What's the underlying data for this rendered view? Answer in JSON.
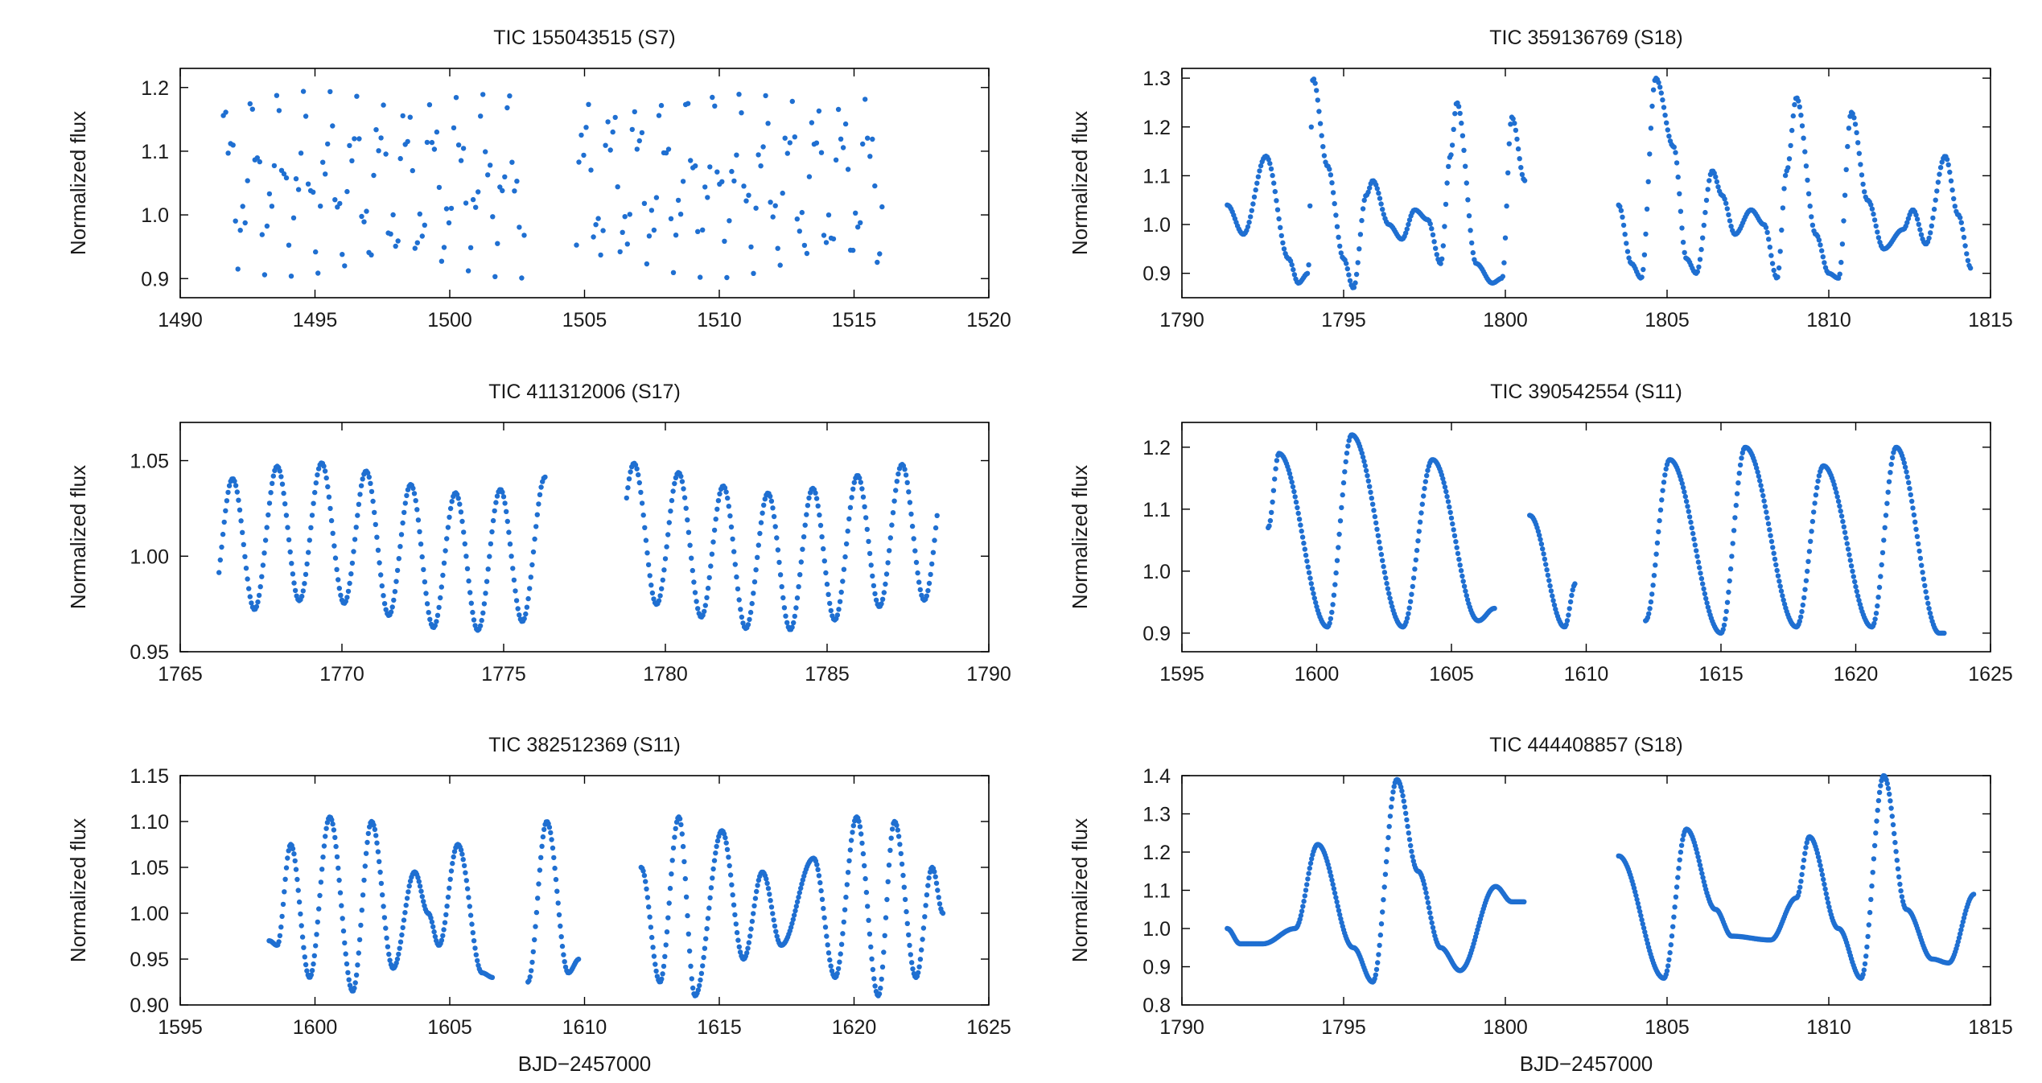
{
  "colors": {
    "points": "#1f6fd1",
    "axes": "#000000",
    "text": "#1a1a1a"
  },
  "chart_data": [
    {
      "type": "scatter",
      "title": "TIC 155043515 (S7)",
      "xlabel": "",
      "ylabel": "Normalized flux",
      "xlim": [
        1490,
        1520
      ],
      "ylim": [
        0.87,
        1.23
      ],
      "xticks": [
        1490,
        1495,
        1500,
        1505,
        1510,
        1515,
        1520
      ],
      "xtick_labels": [
        "1490",
        "1495",
        "1500",
        "1505",
        "1510",
        "1515",
        "1520"
      ],
      "yticks": [
        0.9,
        1.0,
        1.1,
        1.2
      ],
      "ytick_labels": [
        "0.9",
        "1.0",
        "1.1",
        "1.2"
      ],
      "series": [
        {
          "name": "TIC 155043515",
          "kind": "sampled",
          "segments": [
            [
              1491.6,
              1502.8
            ],
            [
              1504.7,
              1516.1
            ]
          ],
          "step": 0.09,
          "baseline": 1.05,
          "trend": 0,
          "components": [
            {
              "period": 0.95,
              "amplitude": 0.1,
              "phase": 0,
              "sharpness": 0
            },
            {
              "period": 0.33,
              "amplitude": 0.05,
              "phase": 1.1,
              "sharpness": 0
            }
          ]
        }
      ]
    },
    {
      "type": "scatter",
      "title": "TIC 359136769 (S18)",
      "xlabel": "",
      "ylabel": "Normalized flux",
      "xlim": [
        1790,
        1815
      ],
      "ylim": [
        0.85,
        1.32
      ],
      "xticks": [
        1790,
        1795,
        1800,
        1805,
        1810,
        1815
      ],
      "xtick_labels": [
        "1790",
        "1795",
        "1800",
        "1805",
        "1810",
        "1815"
      ],
      "yticks": [
        0.9,
        1.0,
        1.1,
        1.2,
        1.3
      ],
      "ytick_labels": [
        "0.9",
        "1.0",
        "1.1",
        "1.2",
        "1.3"
      ],
      "series": [
        {
          "name": "TIC 359136769",
          "kind": "keyed",
          "segments": [
            [
              1791.4,
              1800.6
            ],
            [
              1803.5,
              1814.4
            ]
          ],
          "step": 0.04,
          "keys": [
            [
              1791.4,
              1.04
            ],
            [
              1791.9,
              0.98
            ],
            [
              1792.6,
              1.14
            ],
            [
              1793.3,
              0.93
            ],
            [
              1793.6,
              0.88
            ],
            [
              1793.9,
              0.9
            ],
            [
              1794.05,
              1.3
            ],
            [
              1794.5,
              1.12
            ],
            [
              1795.0,
              0.93
            ],
            [
              1795.3,
              0.87
            ],
            [
              1795.7,
              1.06
            ],
            [
              1795.9,
              1.09
            ],
            [
              1796.4,
              1.0
            ],
            [
              1796.8,
              0.97
            ],
            [
              1797.2,
              1.03
            ],
            [
              1797.6,
              1.01
            ],
            [
              1798.0,
              0.92
            ],
            [
              1798.3,
              1.14
            ],
            [
              1798.5,
              1.25
            ],
            [
              1799.1,
              0.92
            ],
            [
              1799.6,
              0.88
            ],
            [
              1799.9,
              0.89
            ],
            [
              1800.2,
              1.22
            ],
            [
              1800.6,
              1.09
            ],
            [
              1803.5,
              1.04
            ],
            [
              1803.9,
              0.92
            ],
            [
              1804.2,
              0.89
            ],
            [
              1804.65,
              1.3
            ],
            [
              1805.2,
              1.16
            ],
            [
              1805.6,
              0.93
            ],
            [
              1805.9,
              0.9
            ],
            [
              1806.4,
              1.11
            ],
            [
              1806.7,
              1.06
            ],
            [
              1807.1,
              0.98
            ],
            [
              1807.6,
              1.03
            ],
            [
              1808.0,
              1.0
            ],
            [
              1808.4,
              0.89
            ],
            [
              1808.7,
              1.11
            ],
            [
              1809.0,
              1.26
            ],
            [
              1809.6,
              0.98
            ],
            [
              1810.0,
              0.9
            ],
            [
              1810.3,
              0.89
            ],
            [
              1810.7,
              1.23
            ],
            [
              1811.2,
              1.05
            ],
            [
              1811.7,
              0.95
            ],
            [
              1812.3,
              0.99
            ],
            [
              1812.6,
              1.03
            ],
            [
              1813.0,
              0.96
            ],
            [
              1813.6,
              1.14
            ],
            [
              1814.0,
              1.02
            ],
            [
              1814.4,
              0.91
            ]
          ]
        }
      ]
    },
    {
      "type": "scatter",
      "title": "TIC 411312006 (S17)",
      "xlabel": "",
      "ylabel": "Normalized flux",
      "xlim": [
        1765,
        1790
      ],
      "ylim": [
        0.95,
        1.07
      ],
      "xticks": [
        1765,
        1770,
        1775,
        1780,
        1785,
        1790
      ],
      "xtick_labels": [
        "1765",
        "1770",
        "1775",
        "1780",
        "1785",
        "1790"
      ],
      "yticks": [
        0.95,
        1.0,
        1.05
      ],
      "ytick_labels": [
        "0.95",
        "1.00",
        "1.05"
      ],
      "series": [
        {
          "name": "TIC 411312006",
          "kind": "sampled",
          "segments": [
            [
              1766.2,
              1776.3
            ],
            [
              1778.8,
              1788.4
            ]
          ],
          "step": 0.04,
          "baseline": 1.005,
          "trend": 0,
          "components": [
            {
              "period": 1.38,
              "amplitude": 0.036,
              "phase": 0.6,
              "sharpness": 0
            },
            {
              "period": 9.5,
              "amplitude": 0.008,
              "phase": 0.2,
              "sharpness": 0
            }
          ]
        }
      ]
    },
    {
      "type": "scatter",
      "title": "TIC 390542554 (S11)",
      "xlabel": "",
      "ylabel": "Normalized flux",
      "xlim": [
        1595,
        1625
      ],
      "ylim": [
        0.87,
        1.24
      ],
      "xticks": [
        1595,
        1600,
        1605,
        1610,
        1615,
        1620,
        1625
      ],
      "xtick_labels": [
        "1595",
        "1600",
        "1605",
        "1610",
        "1615",
        "1620",
        "1625"
      ],
      "yticks": [
        0.9,
        1.0,
        1.1,
        1.2
      ],
      "ytick_labels": [
        "0.9",
        "1.0",
        "1.1",
        "1.2"
      ],
      "series": [
        {
          "name": "TIC 390542554",
          "kind": "keyed",
          "segments": [
            [
              1598.2,
              1606.6
            ],
            [
              1607.9,
              1609.6
            ],
            [
              1612.2,
              1623.3
            ]
          ],
          "step": 0.04,
          "keys": [
            [
              1598.2,
              1.07
            ],
            [
              1598.6,
              1.19
            ],
            [
              1600.4,
              0.91
            ],
            [
              1601.3,
              1.22
            ],
            [
              1603.2,
              0.91
            ],
            [
              1604.3,
              1.18
            ],
            [
              1606.0,
              0.92
            ],
            [
              1606.6,
              0.94
            ],
            [
              1607.9,
              1.09
            ],
            [
              1609.2,
              0.91
            ],
            [
              1609.6,
              0.98
            ],
            [
              1612.2,
              0.92
            ],
            [
              1613.1,
              1.18
            ],
            [
              1615.0,
              0.9
            ],
            [
              1615.9,
              1.2
            ],
            [
              1617.8,
              0.91
            ],
            [
              1618.8,
              1.17
            ],
            [
              1620.6,
              0.91
            ],
            [
              1621.5,
              1.2
            ],
            [
              1623.1,
              0.9
            ],
            [
              1623.3,
              0.9
            ]
          ]
        }
      ]
    },
    {
      "type": "scatter",
      "title": "TIC 382512369 (S11)",
      "xlabel": "BJD−2457000",
      "ylabel": "Normalized flux",
      "xlim": [
        1595,
        1625
      ],
      "ylim": [
        0.9,
        1.15
      ],
      "xticks": [
        1595,
        1600,
        1605,
        1610,
        1615,
        1620,
        1625
      ],
      "xtick_labels": [
        "1595",
        "1600",
        "1605",
        "1610",
        "1615",
        "1620",
        "1625"
      ],
      "yticks": [
        0.9,
        0.95,
        1.0,
        1.05,
        1.1,
        1.15
      ],
      "ytick_labels": [
        "0.90",
        "0.95",
        "1.00",
        "1.05",
        "1.10",
        "1.15"
      ],
      "series": [
        {
          "name": "TIC 382512369",
          "kind": "keyed",
          "segments": [
            [
              1598.3,
              1606.6
            ],
            [
              1607.9,
              1609.8
            ],
            [
              1612.1,
              1623.3
            ]
          ],
          "step": 0.04,
          "keys": [
            [
              1598.3,
              0.97
            ],
            [
              1598.6,
              0.965
            ],
            [
              1599.1,
              1.075
            ],
            [
              1599.8,
              0.93
            ],
            [
              1600.55,
              1.105
            ],
            [
              1601.4,
              0.915
            ],
            [
              1602.1,
              1.1
            ],
            [
              1602.9,
              0.94
            ],
            [
              1603.7,
              1.045
            ],
            [
              1604.2,
              1.0
            ],
            [
              1604.6,
              0.965
            ],
            [
              1605.3,
              1.075
            ],
            [
              1606.2,
              0.935
            ],
            [
              1606.6,
              0.93
            ],
            [
              1607.9,
              0.925
            ],
            [
              1608.6,
              1.1
            ],
            [
              1609.4,
              0.935
            ],
            [
              1609.8,
              0.95
            ],
            [
              1612.1,
              1.05
            ],
            [
              1612.8,
              0.925
            ],
            [
              1613.5,
              1.105
            ],
            [
              1614.1,
              0.91
            ],
            [
              1615.1,
              1.09
            ],
            [
              1615.9,
              0.95
            ],
            [
              1616.6,
              1.045
            ],
            [
              1617.3,
              0.965
            ],
            [
              1618.5,
              1.06
            ],
            [
              1619.3,
              0.93
            ],
            [
              1620.1,
              1.105
            ],
            [
              1620.9,
              0.91
            ],
            [
              1621.5,
              1.1
            ],
            [
              1622.3,
              0.93
            ],
            [
              1622.9,
              1.05
            ],
            [
              1623.3,
              1.0
            ]
          ]
        }
      ]
    },
    {
      "type": "scatter",
      "title": "TIC 444408857 (S18)",
      "xlabel": "BJD−2457000",
      "ylabel": "Normalized flux",
      "xlim": [
        1790,
        1815
      ],
      "ylim": [
        0.8,
        1.4
      ],
      "xticks": [
        1790,
        1795,
        1800,
        1805,
        1810,
        1815
      ],
      "xtick_labels": [
        "1790",
        "1795",
        "1800",
        "1805",
        "1810",
        "1815"
      ],
      "yticks": [
        0.8,
        0.9,
        1.0,
        1.1,
        1.2,
        1.3,
        1.4
      ],
      "ytick_labels": [
        "0.8",
        "0.9",
        "1.0",
        "1.1",
        "1.2",
        "1.3",
        "1.4"
      ],
      "series": [
        {
          "name": "TIC 444408857",
          "kind": "keyed",
          "segments": [
            [
              1791.4,
              1800.6
            ],
            [
              1803.5,
              1814.5
            ]
          ],
          "step": 0.03,
          "keys": [
            [
              1791.4,
              1.0
            ],
            [
              1791.8,
              0.96
            ],
            [
              1792.5,
              0.96
            ],
            [
              1793.5,
              1.0
            ],
            [
              1794.2,
              1.22
            ],
            [
              1795.3,
              0.95
            ],
            [
              1795.9,
              0.86
            ],
            [
              1796.65,
              1.39
            ],
            [
              1797.3,
              1.15
            ],
            [
              1798.0,
              0.95
            ],
            [
              1798.6,
              0.89
            ],
            [
              1799.7,
              1.11
            ],
            [
              1800.2,
              1.07
            ],
            [
              1800.6,
              1.07
            ],
            [
              1803.5,
              1.19
            ],
            [
              1804.9,
              0.87
            ],
            [
              1805.6,
              1.26
            ],
            [
              1806.5,
              1.05
            ],
            [
              1807.0,
              0.98
            ],
            [
              1808.2,
              0.97
            ],
            [
              1809.0,
              1.08
            ],
            [
              1809.4,
              1.24
            ],
            [
              1810.3,
              1.0
            ],
            [
              1811.0,
              0.87
            ],
            [
              1811.7,
              1.4
            ],
            [
              1812.4,
              1.05
            ],
            [
              1813.2,
              0.92
            ],
            [
              1813.7,
              0.91
            ],
            [
              1814.5,
              1.09
            ]
          ]
        }
      ]
    }
  ]
}
